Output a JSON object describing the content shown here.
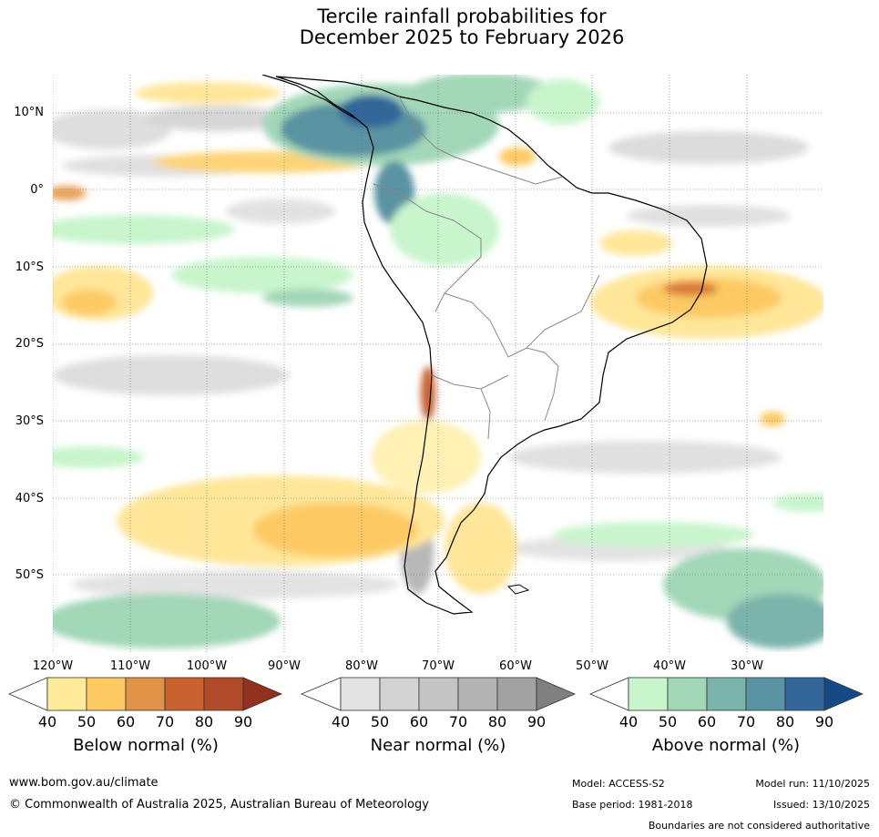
{
  "title": {
    "line1": "Tercile rainfall probabilities for",
    "line2": "December 2025 to February 2026"
  },
  "axes": {
    "latitude_labels": [
      "10°N",
      "0°",
      "10°S",
      "20°S",
      "30°S",
      "40°S",
      "50°S"
    ],
    "longitude_labels": [
      "120°W",
      "110°W",
      "100°W",
      "90°W",
      "80°W",
      "70°W",
      "60°W",
      "50°W",
      "40°W",
      "30°W"
    ]
  },
  "legend": {
    "ticks": [
      "40",
      "50",
      "60",
      "70",
      "80",
      "90"
    ],
    "below": {
      "title": "Below normal (%)",
      "colors": [
        "#ffffff",
        "#ffeb99",
        "#fdc963",
        "#e09347",
        "#c9622f",
        "#b14a28",
        "#93311f"
      ]
    },
    "near": {
      "title": "Near normal (%)",
      "colors": [
        "#ffffff",
        "#e4e4e4",
        "#d3d3d3",
        "#c4c4c4",
        "#b3b3b3",
        "#a2a2a2",
        "#808080"
      ]
    },
    "above": {
      "title": "Above normal (%)",
      "colors": [
        "#ffffff",
        "#c8f5cc",
        "#a2d7b8",
        "#7ab4ab",
        "#5a93a1",
        "#336699",
        "#164a84"
      ]
    }
  },
  "footer": {
    "url": "www.bom.gov.au/climate",
    "copyright": "© Commonwealth of Australia 2025, Australian Bureau of Meteorology",
    "model": "Model: ACCESS-S2",
    "base_period": "Base period: 1981-2018",
    "model_run": "Model run: 11/10/2025",
    "issued": "Issued: 13/10/2025",
    "disclaimer": "Boundaries are not considered authoritative"
  }
}
